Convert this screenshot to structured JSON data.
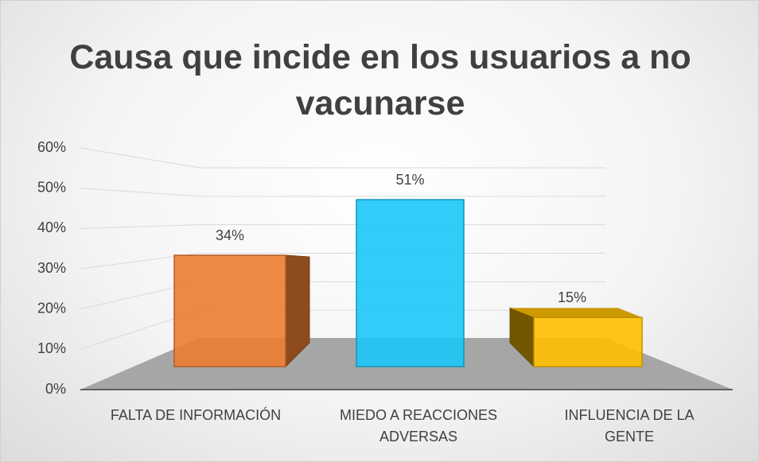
{
  "chart_data": {
    "type": "bar3d",
    "title": "Causa que incide en los usuarios a no vacunarse",
    "categories": [
      "FALTA DE INFORMACIÓN",
      "MIEDO A REACCIONES ADVERSAS",
      "INFLUENCIA DE LA GENTE"
    ],
    "values": [
      34,
      51,
      15
    ],
    "value_labels": [
      "34%",
      "51%",
      "15%"
    ],
    "colors": [
      "#ed7d31",
      "#1cc7f7",
      "#ffc000"
    ],
    "ylim": [
      0,
      60
    ],
    "yticks": [
      {
        "value": 0,
        "label": "0%"
      },
      {
        "value": 10,
        "label": "10%"
      },
      {
        "value": 20,
        "label": "20%"
      },
      {
        "value": 30,
        "label": "30%"
      },
      {
        "value": 40,
        "label": "40%"
      },
      {
        "value": 50,
        "label": "50%"
      },
      {
        "value": 60,
        "label": "60%"
      }
    ],
    "grid": true
  }
}
